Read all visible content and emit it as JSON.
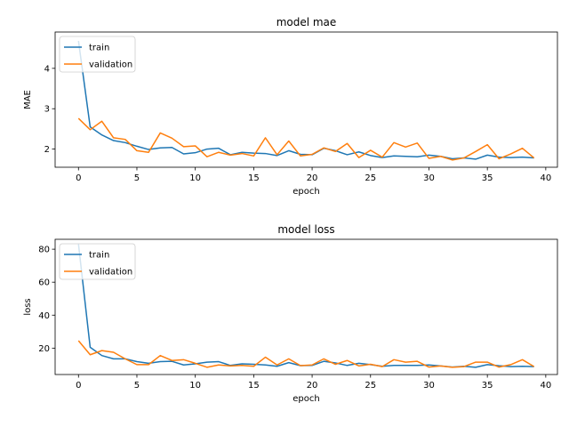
{
  "colors": {
    "train": "#1f77b4",
    "validation": "#ff7f0e"
  },
  "chart_data": [
    {
      "type": "line",
      "title": "model mae",
      "xlabel": "epoch",
      "ylabel": "MAE",
      "xlim": [
        -2,
        41
      ],
      "ylim": [
        1.55,
        4.9
      ],
      "xticks": [
        0,
        5,
        10,
        15,
        20,
        25,
        30,
        35,
        40
      ],
      "yticks": [
        2,
        3,
        4
      ],
      "legend": "upper-left",
      "x": [
        0,
        1,
        2,
        3,
        4,
        5,
        6,
        7,
        8,
        9,
        10,
        11,
        12,
        13,
        14,
        15,
        16,
        17,
        18,
        19,
        20,
        21,
        22,
        23,
        24,
        25,
        26,
        27,
        28,
        29,
        30,
        31,
        32,
        33,
        34,
        35,
        36,
        37,
        38,
        39
      ],
      "series": [
        {
          "name": "train",
          "color_key": "train",
          "values": [
            4.68,
            2.55,
            2.35,
            2.21,
            2.16,
            2.07,
            1.99,
            2.03,
            2.04,
            1.88,
            1.91,
            2.0,
            2.02,
            1.86,
            1.92,
            1.9,
            1.89,
            1.84,
            1.96,
            1.87,
            1.86,
            2.02,
            1.96,
            1.86,
            1.93,
            1.84,
            1.79,
            1.83,
            1.82,
            1.81,
            1.85,
            1.82,
            1.76,
            1.78,
            1.75,
            1.85,
            1.8,
            1.79,
            1.8,
            1.78
          ]
        },
        {
          "name": "validation",
          "color_key": "validation",
          "values": [
            2.76,
            2.48,
            2.69,
            2.28,
            2.24,
            1.96,
            1.92,
            2.4,
            2.27,
            2.06,
            2.08,
            1.81,
            1.92,
            1.85,
            1.89,
            1.83,
            2.28,
            1.86,
            2.2,
            1.83,
            1.87,
            2.03,
            1.94,
            2.14,
            1.79,
            1.97,
            1.8,
            2.16,
            2.05,
            2.15,
            1.77,
            1.82,
            1.73,
            1.78,
            1.94,
            2.11,
            1.76,
            1.88,
            2.02,
            1.78
          ]
        }
      ]
    },
    {
      "type": "line",
      "title": "model loss",
      "xlabel": "epoch",
      "ylabel": "loss",
      "xlim": [
        -2,
        41
      ],
      "ylim": [
        4,
        86
      ],
      "xticks": [
        0,
        5,
        10,
        15,
        20,
        25,
        30,
        35,
        40
      ],
      "yticks": [
        20,
        40,
        60,
        80
      ],
      "legend": "upper-left",
      "x": [
        0,
        1,
        2,
        3,
        4,
        5,
        6,
        7,
        8,
        9,
        10,
        11,
        12,
        13,
        14,
        15,
        16,
        17,
        18,
        19,
        20,
        21,
        22,
        23,
        24,
        25,
        26,
        27,
        28,
        29,
        30,
        31,
        32,
        33,
        34,
        35,
        36,
        37,
        38,
        39
      ],
      "series": [
        {
          "name": "train",
          "color_key": "train",
          "values": [
            83,
            20.5,
            15.5,
            13.5,
            13.5,
            11.8,
            10.8,
            11.8,
            12.0,
            9.8,
            10.5,
            11.5,
            11.8,
            9.5,
            10.5,
            10.2,
            9.8,
            9.0,
            11.2,
            9.4,
            9.5,
            12.0,
            11.0,
            9.5,
            10.8,
            10.0,
            9.0,
            9.5,
            9.5,
            9.5,
            9.8,
            9.2,
            8.5,
            9.0,
            8.4,
            10.0,
            9.3,
            8.8,
            9.0,
            8.8
          ]
        },
        {
          "name": "validation",
          "color_key": "validation",
          "values": [
            24.5,
            16.0,
            18.5,
            17.5,
            13.5,
            10.0,
            10.0,
            15.5,
            12.5,
            13.0,
            10.8,
            8.4,
            9.8,
            9.2,
            9.5,
            9.0,
            14.5,
            9.8,
            13.5,
            9.4,
            9.8,
            13.5,
            10.2,
            12.5,
            9.2,
            10.2,
            8.8,
            13.0,
            11.5,
            12.0,
            8.5,
            9.2,
            8.4,
            8.8,
            11.5,
            11.5,
            8.5,
            10.0,
            13.0,
            8.8
          ]
        }
      ]
    }
  ]
}
